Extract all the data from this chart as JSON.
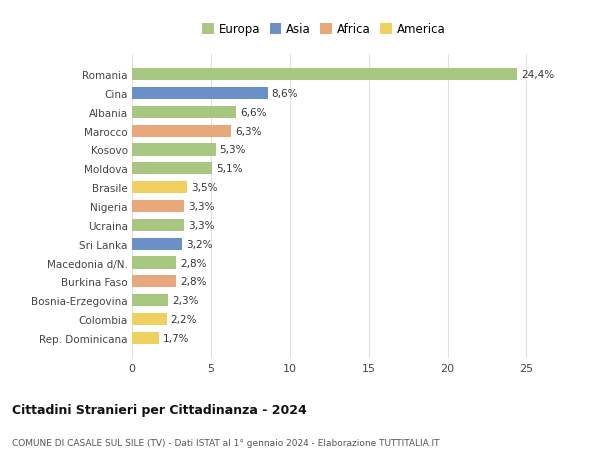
{
  "categories": [
    "Romania",
    "Cina",
    "Albania",
    "Marocco",
    "Kosovo",
    "Moldova",
    "Brasile",
    "Nigeria",
    "Ucraina",
    "Sri Lanka",
    "Macedonia d/N.",
    "Burkina Faso",
    "Bosnia-Erzegovina",
    "Colombia",
    "Rep. Dominicana"
  ],
  "values": [
    24.4,
    8.6,
    6.6,
    6.3,
    5.3,
    5.1,
    3.5,
    3.3,
    3.3,
    3.2,
    2.8,
    2.8,
    2.3,
    2.2,
    1.7
  ],
  "labels": [
    "24,4%",
    "8,6%",
    "6,6%",
    "6,3%",
    "5,3%",
    "5,1%",
    "3,5%",
    "3,3%",
    "3,3%",
    "3,2%",
    "2,8%",
    "2,8%",
    "2,3%",
    "2,2%",
    "1,7%"
  ],
  "continents": [
    "Europa",
    "Asia",
    "Europa",
    "Africa",
    "Europa",
    "Europa",
    "America",
    "Africa",
    "Europa",
    "Asia",
    "Europa",
    "Africa",
    "Europa",
    "America",
    "America"
  ],
  "continent_colors": {
    "Europa": "#a8c882",
    "Asia": "#6b8fc7",
    "Africa": "#e8a87c",
    "America": "#f0d060"
  },
  "legend_order": [
    "Europa",
    "Asia",
    "Africa",
    "America"
  ],
  "title1": "Cittadini Stranieri per Cittadinanza - 2024",
  "title2": "COMUNE DI CASALE SUL SILE (TV) - Dati ISTAT al 1° gennaio 2024 - Elaborazione TUTTITALIA.IT",
  "xlim": [
    0,
    27
  ],
  "xticks": [
    0,
    5,
    10,
    15,
    20,
    25
  ],
  "bg_color": "#ffffff",
  "grid_color": "#e0e0e0",
  "bar_height": 0.65
}
